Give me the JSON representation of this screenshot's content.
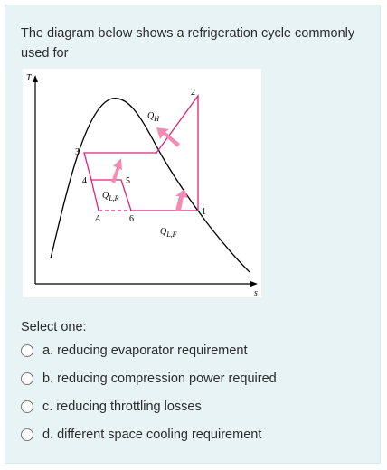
{
  "question": {
    "text": "The diagram below shows a refrigeration cycle commonly used for",
    "diagram": {
      "t_axis": "T",
      "s_axis": "s",
      "points": [
        "1",
        "2",
        "3",
        "4",
        "5",
        "6",
        "A"
      ],
      "heat_labels": [
        {
          "main": "Q",
          "sub": "H"
        },
        {
          "main": "Q",
          "sub": "L,R"
        },
        {
          "main": "Q",
          "sub": "L,F"
        }
      ]
    },
    "prompt": "Select one:",
    "options": [
      "a. reducing evaporator requirement",
      "b. reducing compression power required",
      "c. reducing throttling losses",
      "d. different space cooling requirement"
    ]
  }
}
